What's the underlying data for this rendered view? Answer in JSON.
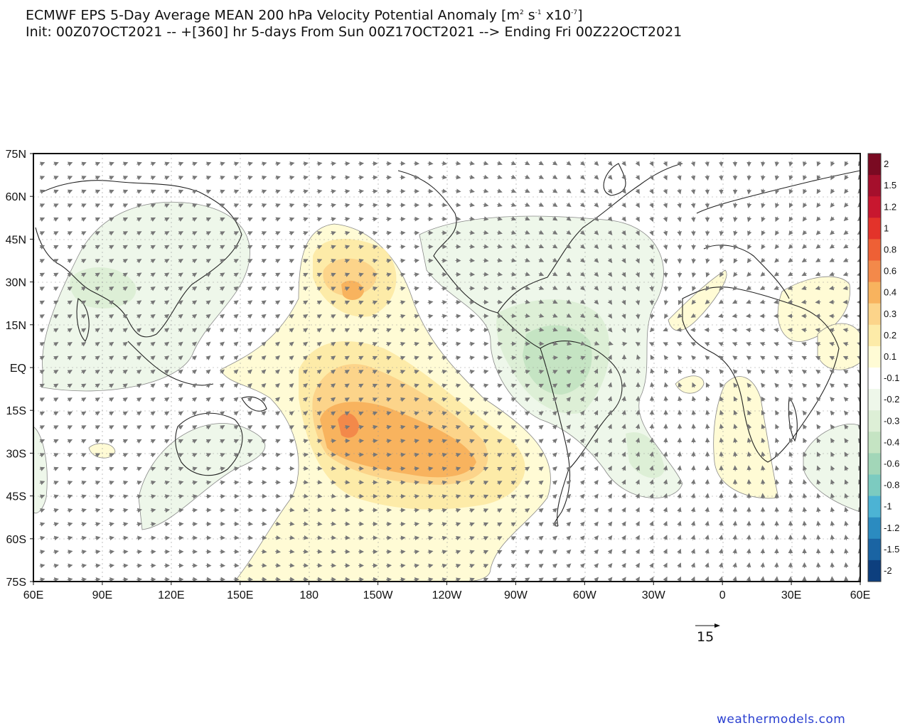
{
  "header": {
    "title_main": "ECMWF EPS 5-Day Average MEAN 200 hPa Velocity Potential Anomaly [m",
    "title_sup1": "2",
    "title_mid": " s",
    "title_sup2": "-1",
    "title_mid2": " x10",
    "title_sup3": "-7",
    "title_end": "]",
    "subtitle": "Init: 00Z07OCT2021 -- +[360] hr   5-days From Sun 00Z17OCT2021 --> Ending Fri 00Z22OCT2021"
  },
  "map": {
    "projection": "equirectangular",
    "lon_range": "60E to 60E (centered on dateline)",
    "lat_range": "75S to 75N",
    "lat_labels": [
      "75N",
      "60N",
      "45N",
      "30N",
      "15N",
      "EQ",
      "15S",
      "30S",
      "45S",
      "60S",
      "75S"
    ],
    "lon_labels": [
      "60E",
      "90E",
      "120E",
      "150E",
      "180",
      "150W",
      "120W",
      "90W",
      "60W",
      "30W",
      "0",
      "30E",
      "60E"
    ],
    "vector_field": "divergent wind arrows",
    "reference_vector": "15"
  },
  "colorbar": {
    "levels": [
      "2",
      "1.5",
      "1.2",
      "1",
      "0.8",
      "0.6",
      "0.4",
      "0.3",
      "0.2",
      "0.1",
      "-0.1",
      "-0.2",
      "-0.3",
      "-0.4",
      "-0.6",
      "-0.8",
      "-1",
      "-1.2",
      "-1.5",
      "-2"
    ],
    "colors": [
      "#7a0a22",
      "#a50f2c",
      "#c8172f",
      "#e3332a",
      "#ee6035",
      "#f3894a",
      "#f8b35e",
      "#fcd48a",
      "#fdeba8",
      "#fffbd5",
      "#ffffff",
      "#eef7ea",
      "#ddefd6",
      "#c5e4c3",
      "#a2d6b8",
      "#7ccbc0",
      "#4cb3d4",
      "#2b8bc0",
      "#1a64a3",
      "#0d3f7e"
    ]
  },
  "credit": "weathermodels.com",
  "colors": {
    "positive_light": "#fff6c4",
    "positive_mid": "#fbd98d",
    "positive_strong": "#f5ae5e",
    "positive_core": "#ee8d45",
    "negative_light": "#e6f3e2",
    "negative_mid": "#c7e6cb",
    "negative_strong": "#a6d7bb"
  }
}
